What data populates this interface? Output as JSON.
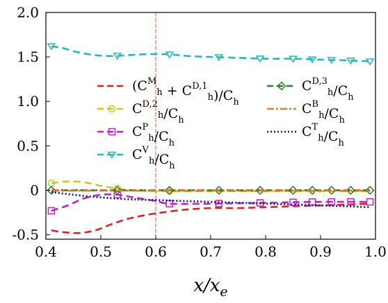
{
  "chart_data": {
    "type": "line",
    "xlabel": "x/x_e",
    "ylabel": "",
    "xlim": [
      0.4,
      1.0
    ],
    "ylim": [
      -0.55,
      2.0
    ],
    "xticks": [
      0.4,
      0.5,
      0.6,
      0.7,
      0.8,
      0.9,
      1.0
    ],
    "xtick_labels": [
      "0.4",
      "0.5",
      "0.6",
      "0.7",
      "0.8",
      "0.9",
      "1.0"
    ],
    "yticks": [
      -0.5,
      0,
      0.5,
      1.0,
      1.5,
      2.0
    ],
    "ytick_labels": [
      "-0.5",
      "0",
      "0.5",
      "1.0",
      "1.5",
      "2.0"
    ],
    "grid": false,
    "legend_position": "center",
    "vline": {
      "x": 0.6,
      "color": "#e05050"
    },
    "series": [
      {
        "legend": {
          "open": "(",
          "base1": "C",
          "sub1": "h",
          "sup1": "M",
          "mid": " + ",
          "base2": "C",
          "sub2": "h",
          "sup2": "D,1",
          "close": ")/",
          "base3": "C",
          "sub3": "h"
        },
        "color": "#e02020",
        "dash": "10,6",
        "marker": "none",
        "x": [
          0.41,
          0.43,
          0.46,
          0.49,
          0.52,
          0.55,
          0.58,
          0.6,
          0.65,
          0.7,
          0.75,
          0.8,
          0.85,
          0.9,
          0.95,
          0.99
        ],
        "values": [
          -0.45,
          -0.47,
          -0.48,
          -0.45,
          -0.38,
          -0.32,
          -0.28,
          -0.26,
          -0.22,
          -0.2,
          -0.2,
          -0.19,
          -0.18,
          -0.17,
          -0.16,
          -0.15
        ]
      },
      {
        "legend": {
          "base1": "C",
          "sub1": "h",
          "sup1": "D,2",
          "close": "/",
          "base3": "C",
          "sub3": "h"
        },
        "color": "#c8c820",
        "dash": "10,6",
        "marker": "circle",
        "markers_x": [
          0.41,
          0.53,
          0.625
        ],
        "x": [
          0.41,
          0.44,
          0.47,
          0.5,
          0.53,
          0.56,
          0.6,
          0.65,
          0.7,
          0.8,
          0.9,
          0.99
        ],
        "values": [
          0.08,
          0.1,
          0.09,
          0.05,
          0.02,
          0.0,
          -0.01,
          -0.01,
          -0.01,
          -0.01,
          -0.01,
          -0.01
        ]
      },
      {
        "legend": {
          "base1": "C",
          "sub1": "h",
          "sup1": "P",
          "close": "/",
          "base3": "C",
          "sub3": "h"
        },
        "color": "#c020c0",
        "dash": "10,6",
        "marker": "square",
        "markers_x": [
          0.41,
          0.53,
          0.625,
          0.715,
          0.79,
          0.85,
          0.885,
          0.92,
          0.955,
          0.99
        ],
        "x": [
          0.41,
          0.44,
          0.47,
          0.5,
          0.53,
          0.56,
          0.6,
          0.625,
          0.7,
          0.8,
          0.9,
          0.99
        ],
        "values": [
          -0.23,
          -0.17,
          -0.09,
          -0.05,
          -0.05,
          -0.08,
          -0.12,
          -0.15,
          -0.15,
          -0.14,
          -0.13,
          -0.13
        ]
      },
      {
        "legend": {
          "base1": "C",
          "sub1": "h",
          "sup1": "V",
          "close": "/",
          "base3": "C",
          "sub3": "h"
        },
        "color": "#20b8c0",
        "dash": "10,6",
        "marker": "triangle",
        "markers_x": [
          0.41,
          0.53,
          0.625,
          0.715,
          0.79,
          0.85,
          0.885,
          0.92,
          0.955,
          0.99
        ],
        "x": [
          0.41,
          0.43,
          0.46,
          0.49,
          0.52,
          0.55,
          0.58,
          0.62,
          0.66,
          0.7,
          0.75,
          0.8,
          0.85,
          0.9,
          0.95,
          0.99
        ],
        "values": [
          1.62,
          1.6,
          1.55,
          1.52,
          1.51,
          1.52,
          1.53,
          1.53,
          1.51,
          1.5,
          1.49,
          1.48,
          1.48,
          1.47,
          1.46,
          1.45
        ]
      },
      {
        "legend": {
          "base1": "C",
          "sub1": "h",
          "sup1": "D,3",
          "close": "/",
          "base3": "C",
          "sub3": "h"
        },
        "color": "#208020",
        "dash": "10,4",
        "marker": "diamond",
        "markers_x": [
          0.41,
          0.53,
          0.625,
          0.715,
          0.79,
          0.85,
          0.885,
          0.92,
          0.955,
          0.99
        ],
        "x": [
          0.41,
          0.5,
          0.6,
          0.7,
          0.8,
          0.9,
          0.99
        ],
        "values": [
          0.0,
          0.0,
          0.0,
          0.0,
          0.0,
          0.0,
          0.0
        ]
      },
      {
        "legend": {
          "base1": "C",
          "sub1": "h",
          "sup1": "B",
          "close": "/",
          "base3": "C",
          "sub3": "h"
        },
        "color": "#d08040",
        "dash": "12,4,3,4",
        "marker": "none",
        "x": [
          0.41,
          0.5,
          0.6,
          0.7,
          0.8,
          0.9,
          0.99
        ],
        "values": [
          -0.005,
          -0.005,
          -0.005,
          -0.005,
          -0.005,
          -0.005,
          -0.005
        ]
      },
      {
        "legend": {
          "base1": "C",
          "sub1": "h",
          "sup1": "T",
          "close": "/",
          "base3": "C",
          "sub3": "h"
        },
        "color": "#101090",
        "dash": "2,3",
        "marker": "none",
        "x": [
          0.41,
          0.45,
          0.5,
          0.55,
          0.6,
          0.65,
          0.7,
          0.75,
          0.8,
          0.85,
          0.9,
          0.95,
          0.99
        ],
        "values": [
          -0.02,
          -0.05,
          -0.08,
          -0.1,
          -0.11,
          -0.12,
          -0.13,
          -0.14,
          -0.15,
          -0.16,
          -0.17,
          -0.18,
          -0.19
        ]
      }
    ]
  }
}
